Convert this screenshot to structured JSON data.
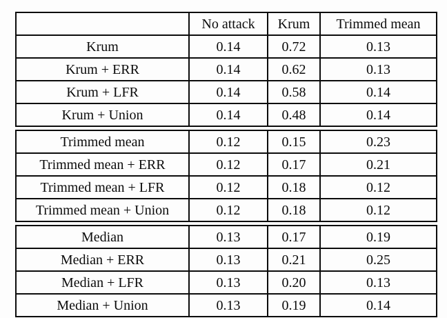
{
  "page": {
    "background": "#fdfdfd",
    "border_color": "#0b0b0b",
    "text_color": "#0b0b0b"
  },
  "table": {
    "column_headers": [
      "",
      "No attack",
      "Krum",
      "Trimmed mean"
    ],
    "groups": [
      {
        "name": "krum-group",
        "rows": [
          {
            "label": "Krum",
            "values": [
              "0.14",
              "0.72",
              "0.13"
            ]
          },
          {
            "label": "Krum + ERR",
            "values": [
              "0.14",
              "0.62",
              "0.13"
            ]
          },
          {
            "label": "Krum + LFR",
            "values": [
              "0.14",
              "0.58",
              "0.14"
            ]
          },
          {
            "label": "Krum + Union",
            "values": [
              "0.14",
              "0.48",
              "0.14"
            ]
          }
        ]
      },
      {
        "name": "trimmed-mean-group",
        "rows": [
          {
            "label": "Trimmed mean",
            "values": [
              "0.12",
              "0.15",
              "0.23"
            ]
          },
          {
            "label": "Trimmed mean + ERR",
            "values": [
              "0.12",
              "0.17",
              "0.21"
            ]
          },
          {
            "label": "Trimmed mean + LFR",
            "values": [
              "0.12",
              "0.18",
              "0.12"
            ]
          },
          {
            "label": "Trimmed mean + Union",
            "values": [
              "0.12",
              "0.18",
              "0.12"
            ]
          }
        ]
      },
      {
        "name": "median-group",
        "rows": [
          {
            "label": "Median",
            "values": [
              "0.13",
              "0.17",
              "0.19"
            ]
          },
          {
            "label": "Median + ERR",
            "values": [
              "0.13",
              "0.21",
              "0.25"
            ]
          },
          {
            "label": "Median + LFR",
            "values": [
              "0.13",
              "0.20",
              "0.13"
            ]
          },
          {
            "label": "Median + Union",
            "values": [
              "0.13",
              "0.19",
              "0.14"
            ]
          }
        ]
      }
    ]
  },
  "chart_data": {
    "type": "table",
    "columns": [
      "",
      "No attack",
      "Krum",
      "Trimmed mean"
    ],
    "rows": [
      [
        "Krum",
        0.14,
        0.72,
        0.13
      ],
      [
        "Krum + ERR",
        0.14,
        0.62,
        0.13
      ],
      [
        "Krum + LFR",
        0.14,
        0.58,
        0.14
      ],
      [
        "Krum + Union",
        0.14,
        0.48,
        0.14
      ],
      [
        "Trimmed mean",
        0.12,
        0.15,
        0.23
      ],
      [
        "Trimmed mean + ERR",
        0.12,
        0.17,
        0.21
      ],
      [
        "Trimmed mean + LFR",
        0.12,
        0.18,
        0.12
      ],
      [
        "Trimmed mean + Union",
        0.12,
        0.18,
        0.12
      ],
      [
        "Median",
        0.13,
        0.17,
        0.19
      ],
      [
        "Median + ERR",
        0.13,
        0.21,
        0.25
      ],
      [
        "Median + LFR",
        0.13,
        0.2,
        0.13
      ],
      [
        "Median + Union",
        0.13,
        0.19,
        0.14
      ]
    ]
  }
}
